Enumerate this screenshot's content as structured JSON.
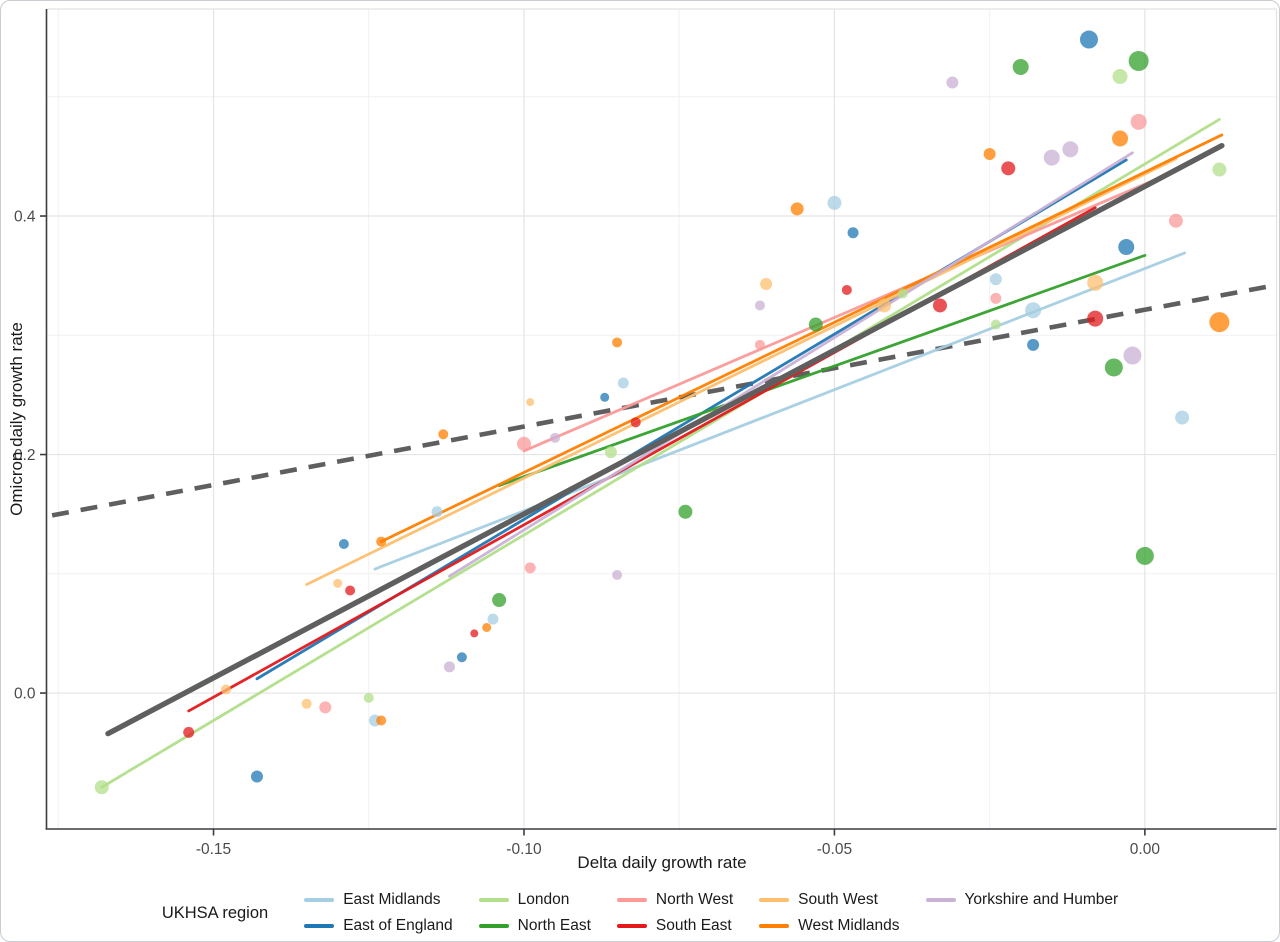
{
  "chart_data": {
    "type": "scatter",
    "xlabel": "Delta daily growth rate",
    "ylabel": "Omicron daily growth rate",
    "xlim": [
      -0.1769,
      0.0212
    ],
    "ylim": [
      -0.114,
      0.5736
    ],
    "xticks": [
      {
        "v": -0.15,
        "label": "-0.15"
      },
      {
        "v": -0.1,
        "label": "-0.10"
      },
      {
        "v": -0.05,
        "label": "-0.05"
      },
      {
        "v": 0.0,
        "label": "0.00"
      }
    ],
    "yticks": [
      {
        "v": 0.0,
        "label": "0.0"
      },
      {
        "v": 0.2,
        "label": "0.2"
      },
      {
        "v": 0.4,
        "label": "0.4"
      }
    ],
    "x_minor": [
      -0.175,
      -0.125,
      -0.075,
      -0.025
    ],
    "y_minor": [
      0.1,
      0.3,
      0.5
    ],
    "grid": {
      "on": true,
      "major_color": "#e4e4e4",
      "minor_color": "#f1f1f1"
    },
    "axis_color": "#3a3d41",
    "panel_edge_color": "#e2e2e2",
    "tick_label_color": "#4b4b4b",
    "point_opacity": 0.75,
    "legend": {
      "title": "UKHSA region",
      "position": "bottom"
    },
    "series": [
      {
        "name": "East Midlands",
        "color": "#a6cee3",
        "line": {
          "x": [
            -0.124,
            0.0064
          ],
          "y": [
            0.104,
            0.369
          ]
        },
        "points": [
          [
            -0.124,
            -0.023,
            6
          ],
          [
            -0.114,
            0.152,
            5.5
          ],
          [
            -0.105,
            0.062,
            5.5
          ],
          [
            -0.084,
            0.26,
            5.5
          ],
          [
            -0.05,
            0.411,
            7
          ],
          [
            -0.024,
            0.347,
            6
          ],
          [
            -0.018,
            0.321,
            8
          ],
          [
            0.006,
            0.231,
            7
          ]
        ]
      },
      {
        "name": "East of England",
        "color": "#1f78b4",
        "line": {
          "x": [
            -0.143,
            -0.003
          ],
          "y": [
            0.012,
            0.447
          ]
        },
        "points": [
          [
            -0.143,
            -0.07,
            6
          ],
          [
            -0.129,
            0.125,
            5
          ],
          [
            -0.11,
            0.03,
            5
          ],
          [
            -0.087,
            0.248,
            4.5
          ],
          [
            -0.047,
            0.386,
            5.5
          ],
          [
            -0.018,
            0.292,
            6
          ],
          [
            -0.009,
            0.548,
            9
          ],
          [
            -0.003,
            0.374,
            8
          ]
        ]
      },
      {
        "name": "London",
        "color": "#b2df8a",
        "line": {
          "x": [
            -0.168,
            0.012
          ],
          "y": [
            -0.079,
            0.481
          ]
        },
        "points": [
          [
            -0.168,
            -0.079,
            7
          ],
          [
            -0.125,
            -0.004,
            5
          ],
          [
            -0.086,
            0.202,
            6
          ],
          [
            -0.039,
            0.335,
            5
          ],
          [
            -0.024,
            0.309,
            5
          ],
          [
            -0.004,
            0.517,
            7.5
          ],
          [
            0.012,
            0.439,
            7
          ]
        ]
      },
      {
        "name": "North East",
        "color": "#33a02c",
        "line": {
          "x": [
            -0.104,
            0.0
          ],
          "y": [
            0.174,
            0.367
          ]
        },
        "points": [
          [
            -0.104,
            0.078,
            7
          ],
          [
            -0.074,
            0.152,
            7
          ],
          [
            -0.053,
            0.309,
            7
          ],
          [
            -0.02,
            0.525,
            8
          ],
          [
            -0.005,
            0.273,
            9
          ],
          [
            -0.001,
            0.53,
            10
          ],
          [
            0.0,
            0.115,
            9
          ]
        ]
      },
      {
        "name": "North West",
        "color": "#fb9a99",
        "line": {
          "x": [
            -0.1,
            0.005
          ],
          "y": [
            0.203,
            0.438
          ]
        },
        "points": [
          [
            -0.132,
            -0.012,
            6
          ],
          [
            -0.1,
            0.209,
            7
          ],
          [
            -0.099,
            0.105,
            5.5
          ],
          [
            -0.062,
            0.292,
            5
          ],
          [
            -0.024,
            0.331,
            5.5
          ],
          [
            -0.001,
            0.479,
            8
          ],
          [
            0.005,
            0.396,
            7
          ]
        ]
      },
      {
        "name": "South East",
        "color": "#e31a1c",
        "line": {
          "x": [
            -0.154,
            -0.008
          ],
          "y": [
            -0.015,
            0.407
          ]
        },
        "points": [
          [
            -0.154,
            -0.033,
            5.5
          ],
          [
            -0.128,
            0.086,
            5
          ],
          [
            -0.108,
            0.05,
            4
          ],
          [
            -0.082,
            0.227,
            5
          ],
          [
            -0.048,
            0.338,
            5
          ],
          [
            -0.033,
            0.325,
            7
          ],
          [
            -0.022,
            0.44,
            7
          ],
          [
            -0.008,
            0.314,
            8
          ]
        ]
      },
      {
        "name": "South West",
        "color": "#fdbf6f",
        "line": {
          "x": [
            -0.135,
            0.005
          ],
          "y": [
            0.091,
            0.448
          ]
        },
        "points": [
          [
            -0.148,
            0.003,
            5
          ],
          [
            -0.135,
            -0.009,
            5
          ],
          [
            -0.13,
            0.092,
            4.5
          ],
          [
            -0.099,
            0.244,
            4
          ],
          [
            -0.061,
            0.343,
            6
          ],
          [
            -0.042,
            0.325,
            7
          ],
          [
            -0.008,
            0.344,
            8
          ]
        ]
      },
      {
        "name": "West Midlands",
        "color": "#ff7f00",
        "line": {
          "x": [
            -0.123,
            0.0124
          ],
          "y": [
            0.127,
            0.468
          ]
        },
        "points": [
          [
            -0.123,
            -0.023,
            5
          ],
          [
            -0.123,
            0.127,
            5
          ],
          [
            -0.113,
            0.217,
            5
          ],
          [
            -0.106,
            0.055,
            4.5
          ],
          [
            -0.085,
            0.294,
            5
          ],
          [
            -0.056,
            0.406,
            6.5
          ],
          [
            -0.025,
            0.452,
            6
          ],
          [
            -0.004,
            0.465,
            8
          ],
          [
            0.012,
            0.311,
            10
          ]
        ]
      },
      {
        "name": "Yorkshire and Humber",
        "color": "#cab2d6",
        "line": {
          "x": [
            -0.112,
            -0.002
          ],
          "y": [
            0.098,
            0.453
          ]
        },
        "points": [
          [
            -0.112,
            0.022,
            5.5
          ],
          [
            -0.095,
            0.214,
            5
          ],
          [
            -0.085,
            0.099,
            5
          ],
          [
            -0.062,
            0.325,
            5
          ],
          [
            -0.031,
            0.512,
            6
          ],
          [
            -0.015,
            0.449,
            8
          ],
          [
            -0.012,
            0.456,
            8
          ],
          [
            -0.002,
            0.283,
            9
          ]
        ]
      }
    ],
    "overall_fit": {
      "name": "overall-fit",
      "color": "#5f5f5f",
      "width": 5.4,
      "x": [
        -0.167,
        0.0124
      ],
      "y": [
        -0.034,
        0.459
      ]
    },
    "reference_line": {
      "name": "reference-dashed",
      "color": "#5f5f5f",
      "width": 4.6,
      "dash": "17 12",
      "x": [
        -0.176,
        0.021
      ],
      "y": [
        0.149,
        0.342
      ]
    }
  }
}
